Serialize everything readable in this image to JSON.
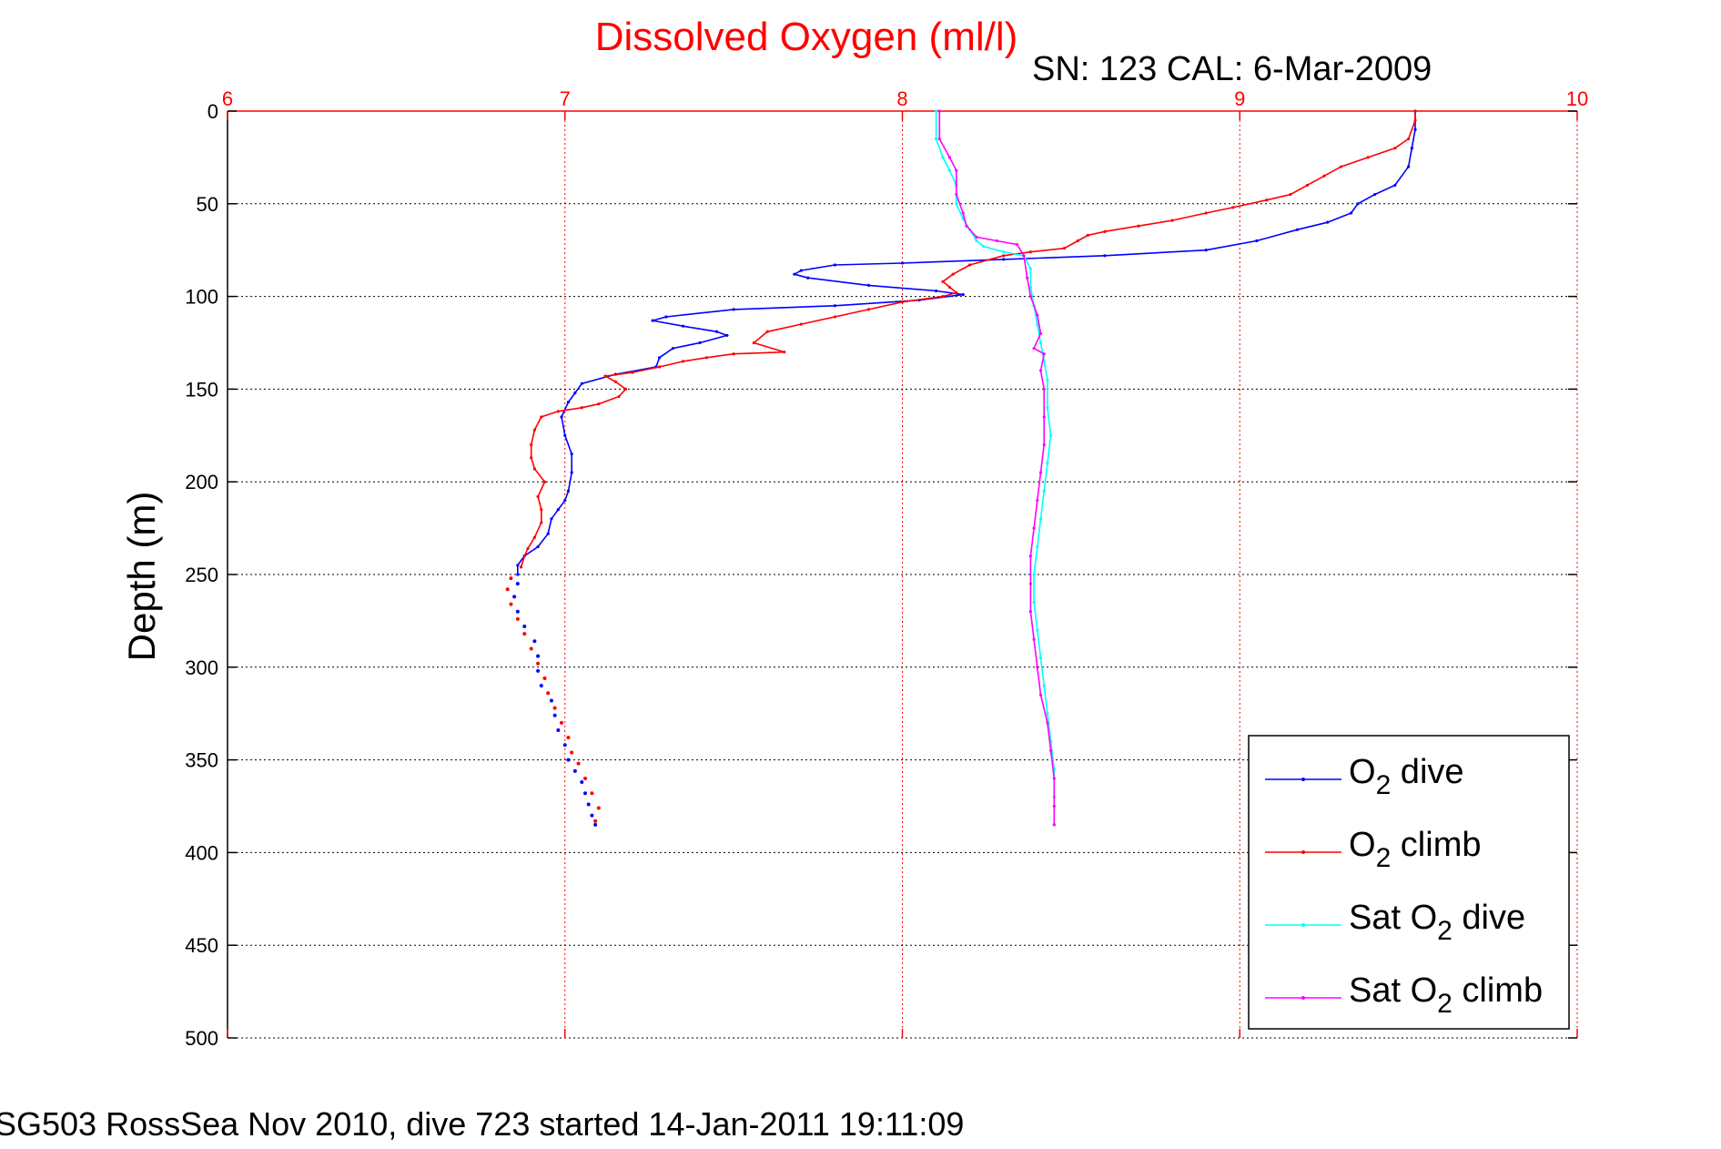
{
  "chart_data": {
    "type": "line",
    "title": "Dissolved Oxygen (ml/l)",
    "subtitle": "SN: 123  CAL: 6-Mar-2009",
    "footer": "SG503 RossSea Nov 2010, dive 723 started 14-Jan-2011 19:11:09",
    "ylabel": "Depth (m)",
    "xlabel": "",
    "x_axis_position": "top",
    "y_reversed": true,
    "xlim": [
      6,
      10
    ],
    "ylim": [
      0,
      500
    ],
    "x_ticks": [
      "6",
      "7",
      "8",
      "9",
      "10"
    ],
    "y_ticks": [
      "0",
      "50",
      "100",
      "150",
      "200",
      "250",
      "300",
      "350",
      "400",
      "450",
      "500"
    ],
    "grid": true,
    "legend_position": "lower-right",
    "colors": {
      "title": "#ff0000",
      "x_ticks": "#ff0000",
      "o2_dive": "#0000ff",
      "o2_climb": "#ff0000",
      "sat_o2_dive": "#00ffff",
      "sat_o2_climb": "#ff00ff"
    },
    "series": [
      {
        "key": "o2_dive",
        "name": "O2 dive",
        "legend_parts": [
          "O",
          "2",
          " dive"
        ],
        "color": "#0000ff",
        "points": [
          [
            9.52,
            0
          ],
          [
            9.52,
            10
          ],
          [
            9.51,
            20
          ],
          [
            9.5,
            30
          ],
          [
            9.46,
            40
          ],
          [
            9.4,
            45
          ],
          [
            9.35,
            50
          ],
          [
            9.33,
            55
          ],
          [
            9.26,
            60
          ],
          [
            9.17,
            64
          ],
          [
            9.05,
            70
          ],
          [
            8.9,
            75
          ],
          [
            8.6,
            78
          ],
          [
            8.3,
            80
          ],
          [
            8.0,
            82
          ],
          [
            7.8,
            83
          ],
          [
            7.7,
            86
          ],
          [
            7.68,
            88
          ],
          [
            7.72,
            90
          ],
          [
            7.9,
            94
          ],
          [
            8.1,
            97
          ],
          [
            8.18,
            99
          ],
          [
            8.05,
            102
          ],
          [
            7.8,
            105
          ],
          [
            7.5,
            107
          ],
          [
            7.3,
            111
          ],
          [
            7.26,
            113
          ],
          [
            7.35,
            116
          ],
          [
            7.45,
            119
          ],
          [
            7.48,
            121
          ],
          [
            7.4,
            125
          ],
          [
            7.32,
            128
          ],
          [
            7.28,
            133
          ],
          [
            7.27,
            138
          ],
          [
            7.15,
            142
          ],
          [
            7.05,
            147
          ],
          [
            7.03,
            152
          ],
          [
            7.01,
            157
          ],
          [
            6.99,
            165
          ],
          [
            7.0,
            175
          ],
          [
            7.02,
            185
          ],
          [
            7.02,
            195
          ],
          [
            7.01,
            205
          ],
          [
            7.0,
            210
          ],
          [
            6.98,
            215
          ],
          [
            6.96,
            220
          ],
          [
            6.95,
            228
          ],
          [
            6.92,
            235
          ],
          [
            6.88,
            240
          ],
          [
            6.86,
            245
          ],
          [
            6.86,
            250
          ]
        ],
        "dotted_points": [
          [
            6.86,
            255
          ],
          [
            6.85,
            262
          ],
          [
            6.86,
            270
          ],
          [
            6.88,
            278
          ],
          [
            6.91,
            286
          ],
          [
            6.92,
            294
          ],
          [
            6.92,
            302
          ],
          [
            6.93,
            310
          ],
          [
            6.96,
            318
          ],
          [
            6.97,
            326
          ],
          [
            6.98,
            334
          ],
          [
            7.0,
            342
          ],
          [
            7.01,
            350
          ],
          [
            7.03,
            356
          ],
          [
            7.05,
            362
          ],
          [
            7.06,
            368
          ],
          [
            7.07,
            374
          ],
          [
            7.08,
            380
          ],
          [
            7.09,
            385
          ]
        ]
      },
      {
        "key": "o2_climb",
        "name": "O2 climb",
        "legend_parts": [
          "O",
          "2",
          " climb"
        ],
        "color": "#ff0000",
        "points": [
          [
            9.52,
            0
          ],
          [
            9.52,
            5
          ],
          [
            9.5,
            15
          ],
          [
            9.46,
            20
          ],
          [
            9.38,
            25
          ],
          [
            9.3,
            30
          ],
          [
            9.25,
            35
          ],
          [
            9.2,
            40
          ],
          [
            9.15,
            45
          ],
          [
            9.08,
            48
          ],
          [
            8.98,
            52
          ],
          [
            8.9,
            55
          ],
          [
            8.8,
            59
          ],
          [
            8.7,
            62
          ],
          [
            8.6,
            65
          ],
          [
            8.55,
            67
          ],
          [
            8.52,
            70
          ],
          [
            8.48,
            74
          ],
          [
            8.38,
            76
          ],
          [
            8.3,
            78
          ],
          [
            8.2,
            83
          ],
          [
            8.15,
            88
          ],
          [
            8.12,
            92
          ],
          [
            8.14,
            95
          ],
          [
            8.16,
            98
          ],
          [
            8.12,
            100
          ],
          [
            8.0,
            103
          ],
          [
            7.9,
            107
          ],
          [
            7.8,
            111
          ],
          [
            7.7,
            115
          ],
          [
            7.6,
            119
          ],
          [
            7.56,
            125
          ],
          [
            7.65,
            130
          ],
          [
            7.5,
            131
          ],
          [
            7.42,
            133
          ],
          [
            7.35,
            135
          ],
          [
            7.28,
            138
          ],
          [
            7.2,
            141
          ],
          [
            7.12,
            143
          ],
          [
            7.15,
            146
          ],
          [
            7.18,
            150
          ],
          [
            7.16,
            154
          ],
          [
            7.1,
            158
          ],
          [
            7.05,
            160
          ],
          [
            6.98,
            162
          ],
          [
            6.93,
            165
          ],
          [
            6.91,
            172
          ],
          [
            6.9,
            180
          ],
          [
            6.9,
            187
          ],
          [
            6.91,
            193
          ],
          [
            6.94,
            200
          ],
          [
            6.92,
            208
          ],
          [
            6.93,
            215
          ],
          [
            6.93,
            222
          ],
          [
            6.91,
            230
          ],
          [
            6.89,
            236
          ],
          [
            6.88,
            240
          ],
          [
            6.87,
            246
          ]
        ],
        "dotted_points": [
          [
            6.84,
            252
          ],
          [
            6.83,
            258
          ],
          [
            6.84,
            266
          ],
          [
            6.86,
            274
          ],
          [
            6.88,
            282
          ],
          [
            6.9,
            290
          ],
          [
            6.92,
            298
          ],
          [
            6.94,
            306
          ],
          [
            6.95,
            314
          ],
          [
            6.97,
            322
          ],
          [
            6.99,
            330
          ],
          [
            7.01,
            338
          ],
          [
            7.02,
            346
          ],
          [
            7.04,
            352
          ],
          [
            7.06,
            360
          ],
          [
            7.08,
            368
          ],
          [
            7.1,
            376
          ],
          [
            7.09,
            383
          ]
        ]
      },
      {
        "key": "sat_o2_dive",
        "name": "Sat O2 dive",
        "legend_parts": [
          "Sat O",
          "2",
          " dive"
        ],
        "color": "#00ffff",
        "points": [
          [
            8.1,
            0
          ],
          [
            8.1,
            15
          ],
          [
            8.12,
            25
          ],
          [
            8.14,
            32
          ],
          [
            8.16,
            40
          ],
          [
            8.16,
            50
          ],
          [
            8.18,
            58
          ],
          [
            8.2,
            64
          ],
          [
            8.22,
            70
          ],
          [
            8.24,
            73
          ],
          [
            8.3,
            76
          ],
          [
            8.36,
            78
          ],
          [
            8.38,
            85
          ],
          [
            8.38,
            95
          ],
          [
            8.39,
            105
          ],
          [
            8.4,
            115
          ],
          [
            8.41,
            125
          ],
          [
            8.42,
            135
          ],
          [
            8.43,
            145
          ],
          [
            8.43,
            160
          ],
          [
            8.44,
            175
          ],
          [
            8.43,
            190
          ],
          [
            8.42,
            205
          ],
          [
            8.41,
            220
          ],
          [
            8.4,
            235
          ],
          [
            8.39,
            250
          ],
          [
            8.39,
            265
          ],
          [
            8.4,
            280
          ],
          [
            8.41,
            295
          ],
          [
            8.42,
            310
          ],
          [
            8.43,
            325
          ],
          [
            8.44,
            340
          ],
          [
            8.45,
            355
          ],
          [
            8.45,
            370
          ],
          [
            8.45,
            385
          ]
        ]
      },
      {
        "key": "sat_o2_climb",
        "name": "Sat O2 climb",
        "legend_parts": [
          "Sat O",
          "2",
          " climb"
        ],
        "color": "#ff00ff",
        "points": [
          [
            8.11,
            0
          ],
          [
            8.11,
            15
          ],
          [
            8.14,
            25
          ],
          [
            8.16,
            32
          ],
          [
            8.16,
            45
          ],
          [
            8.18,
            55
          ],
          [
            8.19,
            62
          ],
          [
            8.22,
            68
          ],
          [
            8.28,
            70
          ],
          [
            8.34,
            72
          ],
          [
            8.36,
            78
          ],
          [
            8.37,
            90
          ],
          [
            8.38,
            100
          ],
          [
            8.4,
            110
          ],
          [
            8.41,
            120
          ],
          [
            8.39,
            128
          ],
          [
            8.42,
            131
          ],
          [
            8.41,
            140
          ],
          [
            8.42,
            150
          ],
          [
            8.42,
            165
          ],
          [
            8.42,
            180
          ],
          [
            8.41,
            195
          ],
          [
            8.4,
            210
          ],
          [
            8.39,
            225
          ],
          [
            8.38,
            240
          ],
          [
            8.38,
            255
          ],
          [
            8.38,
            270
          ],
          [
            8.39,
            285
          ],
          [
            8.4,
            300
          ],
          [
            8.41,
            315
          ],
          [
            8.43,
            330
          ],
          [
            8.44,
            345
          ],
          [
            8.45,
            360
          ],
          [
            8.45,
            375
          ],
          [
            8.45,
            385
          ]
        ]
      }
    ]
  }
}
